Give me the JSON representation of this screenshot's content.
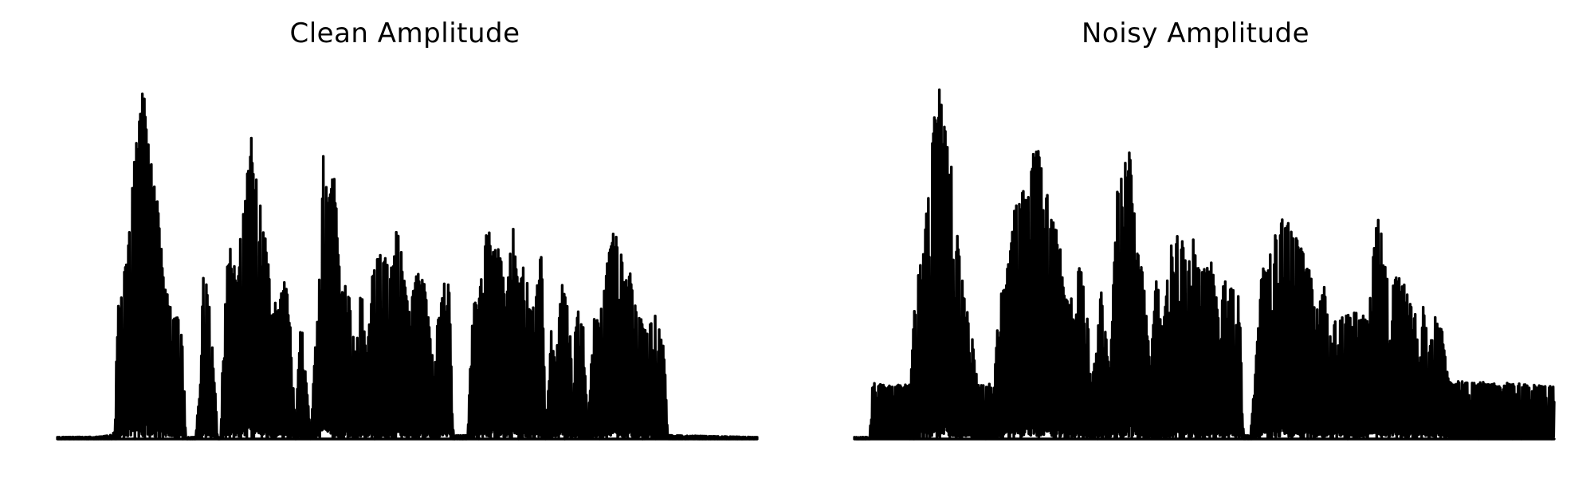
{
  "colors": {
    "background": "#ffffff",
    "line": "#000000"
  },
  "chart_data": [
    {
      "type": "line",
      "title": "Clean Amplitude",
      "xlabel": "",
      "ylabel": "",
      "axes_visible": false,
      "grid": false,
      "x_range": [
        0,
        100
      ],
      "ylim": [
        0,
        1.0
      ],
      "peak_envelope": [
        [
          0,
          0.005
        ],
        [
          6,
          0.006
        ],
        [
          7.5,
          0.01
        ],
        [
          8.2,
          0.02
        ],
        [
          8.6,
          0.37
        ],
        [
          9.3,
          0.42
        ],
        [
          10.2,
          0.57
        ],
        [
          11.3,
          0.85
        ],
        [
          12.4,
          1.0
        ],
        [
          13.0,
          0.82
        ],
        [
          14.0,
          0.72
        ],
        [
          15.2,
          0.47
        ],
        [
          16.4,
          0.34
        ],
        [
          17.2,
          0.34
        ],
        [
          17.8,
          0.3
        ],
        [
          18.4,
          0.005
        ],
        [
          19.8,
          0.005
        ],
        [
          20.4,
          0.2
        ],
        [
          20.9,
          0.49
        ],
        [
          21.8,
          0.37
        ],
        [
          22.4,
          0.2
        ],
        [
          22.9,
          0.005
        ],
        [
          23.3,
          0.005
        ],
        [
          23.8,
          0.35
        ],
        [
          24.6,
          0.56
        ],
        [
          25.7,
          0.51
        ],
        [
          26.9,
          0.72
        ],
        [
          27.8,
          0.87
        ],
        [
          28.7,
          0.71
        ],
        [
          29.7,
          0.58
        ],
        [
          30.6,
          0.42
        ],
        [
          31.4,
          0.36
        ],
        [
          32.6,
          0.45
        ],
        [
          33.3,
          0.33
        ],
        [
          34.0,
          0.02
        ],
        [
          34.8,
          0.35
        ],
        [
          35.5,
          0.18
        ],
        [
          36.2,
          0.005
        ],
        [
          37.0,
          0.32
        ],
        [
          38.0,
          0.78
        ],
        [
          38.8,
          0.7
        ],
        [
          39.6,
          0.77
        ],
        [
          40.4,
          0.43
        ],
        [
          41.5,
          0.44
        ],
        [
          42.6,
          0.22
        ],
        [
          43.4,
          0.44
        ],
        [
          44.2,
          0.22
        ],
        [
          45.0,
          0.48
        ],
        [
          46.3,
          0.54
        ],
        [
          47.6,
          0.46
        ],
        [
          48.6,
          0.6
        ],
        [
          49.5,
          0.46
        ],
        [
          50.3,
          0.37
        ],
        [
          51.5,
          0.47
        ],
        [
          52.6,
          0.42
        ],
        [
          53.6,
          0.24
        ],
        [
          54.6,
          0.36
        ],
        [
          55.4,
          0.48
        ],
        [
          56.0,
          0.42
        ],
        [
          56.6,
          0.01
        ],
        [
          58.6,
          0.01
        ],
        [
          59.4,
          0.38
        ],
        [
          60.3,
          0.4
        ],
        [
          61.4,
          0.62
        ],
        [
          62.4,
          0.51
        ],
        [
          63.1,
          0.57
        ],
        [
          64.1,
          0.38
        ],
        [
          65.1,
          0.6
        ],
        [
          65.9,
          0.43
        ],
        [
          66.8,
          0.52
        ],
        [
          67.6,
          0.35
        ],
        [
          68.4,
          0.4
        ],
        [
          69.2,
          0.53
        ],
        [
          69.8,
          0.01
        ],
        [
          70.6,
          0.31
        ],
        [
          71.2,
          0.2
        ],
        [
          72.0,
          0.44
        ],
        [
          72.9,
          0.38
        ],
        [
          73.6,
          0.22
        ],
        [
          74.3,
          0.36
        ],
        [
          75.1,
          0.33
        ],
        [
          75.8,
          0.02
        ],
        [
          76.6,
          0.35
        ],
        [
          77.5,
          0.33
        ],
        [
          78.5,
          0.48
        ],
        [
          79.4,
          0.57
        ],
        [
          80.3,
          0.55
        ],
        [
          81.1,
          0.44
        ],
        [
          82.0,
          0.46
        ],
        [
          82.6,
          0.37
        ],
        [
          83.4,
          0.34
        ],
        [
          84.2,
          0.31
        ],
        [
          85.2,
          0.36
        ],
        [
          86.1,
          0.3
        ],
        [
          86.7,
          0.27
        ],
        [
          87.2,
          0.01
        ],
        [
          87.8,
          0.01
        ],
        [
          100,
          0.005
        ]
      ]
    },
    {
      "type": "line",
      "title": "Noisy Amplitude",
      "xlabel": "",
      "ylabel": "",
      "axes_visible": false,
      "grid": false,
      "x_range": [
        0,
        100
      ],
      "ylim": [
        0,
        1.0
      ],
      "peak_envelope": [
        [
          0,
          0.005
        ],
        [
          2.2,
          0.005
        ],
        [
          2.6,
          0.16
        ],
        [
          4.5,
          0.15
        ],
        [
          6.0,
          0.15
        ],
        [
          7.0,
          0.15
        ],
        [
          8.0,
          0.15
        ],
        [
          8.7,
          0.43
        ],
        [
          9.3,
          0.46
        ],
        [
          10.2,
          0.6
        ],
        [
          11.1,
          0.85
        ],
        [
          12.4,
          1.0
        ],
        [
          13.2,
          0.82
        ],
        [
          14.1,
          0.73
        ],
        [
          15.1,
          0.48
        ],
        [
          16.2,
          0.37
        ],
        [
          16.6,
          0.32
        ],
        [
          17.6,
          0.16
        ],
        [
          20.0,
          0.15
        ],
        [
          20.6,
          0.39
        ],
        [
          21.5,
          0.42
        ],
        [
          22.7,
          0.62
        ],
        [
          23.9,
          0.69
        ],
        [
          25.0,
          0.72
        ],
        [
          26.2,
          0.86
        ],
        [
          27.0,
          0.74
        ],
        [
          28.3,
          0.61
        ],
        [
          29.3,
          0.55
        ],
        [
          30.1,
          0.38
        ],
        [
          31.0,
          0.41
        ],
        [
          32.2,
          0.51
        ],
        [
          33.2,
          0.37
        ],
        [
          34.0,
          0.16
        ],
        [
          35.3,
          0.42
        ],
        [
          36.5,
          0.17
        ],
        [
          37.5,
          0.68
        ],
        [
          38.5,
          0.82
        ],
        [
          39.4,
          0.81
        ],
        [
          40.2,
          0.57
        ],
        [
          41.4,
          0.44
        ],
        [
          42.3,
          0.2
        ],
        [
          43.2,
          0.49
        ],
        [
          44.0,
          0.28
        ],
        [
          45.0,
          0.52
        ],
        [
          46.4,
          0.59
        ],
        [
          47.5,
          0.49
        ],
        [
          48.3,
          0.57
        ],
        [
          49.0,
          0.47
        ],
        [
          50.2,
          0.5
        ],
        [
          51.2,
          0.49
        ],
        [
          52.0,
          0.36
        ],
        [
          53.0,
          0.45
        ],
        [
          54.0,
          0.44
        ],
        [
          55.0,
          0.4
        ],
        [
          55.6,
          0.01
        ],
        [
          56.6,
          0.01
        ],
        [
          57.2,
          0.16
        ],
        [
          58.2,
          0.48
        ],
        [
          59.0,
          0.47
        ],
        [
          60.2,
          0.58
        ],
        [
          61.2,
          0.65
        ],
        [
          62.1,
          0.62
        ],
        [
          63.1,
          0.56
        ],
        [
          64.0,
          0.52
        ],
        [
          65.0,
          0.49
        ],
        [
          66.0,
          0.35
        ],
        [
          67.2,
          0.43
        ],
        [
          68.2,
          0.26
        ],
        [
          69.0,
          0.4
        ],
        [
          70.0,
          0.34
        ],
        [
          71.3,
          0.36
        ],
        [
          72.5,
          0.35
        ],
        [
          73.4,
          0.33
        ],
        [
          74.4,
          0.6
        ],
        [
          75.1,
          0.61
        ],
        [
          76.0,
          0.46
        ],
        [
          77.0,
          0.44
        ],
        [
          78.2,
          0.46
        ],
        [
          79.2,
          0.39
        ],
        [
          80.3,
          0.35
        ],
        [
          81.3,
          0.37
        ],
        [
          82.2,
          0.25
        ],
        [
          83.0,
          0.34
        ],
        [
          84.0,
          0.3
        ],
        [
          85.0,
          0.16
        ],
        [
          100,
          0.15
        ]
      ]
    }
  ]
}
